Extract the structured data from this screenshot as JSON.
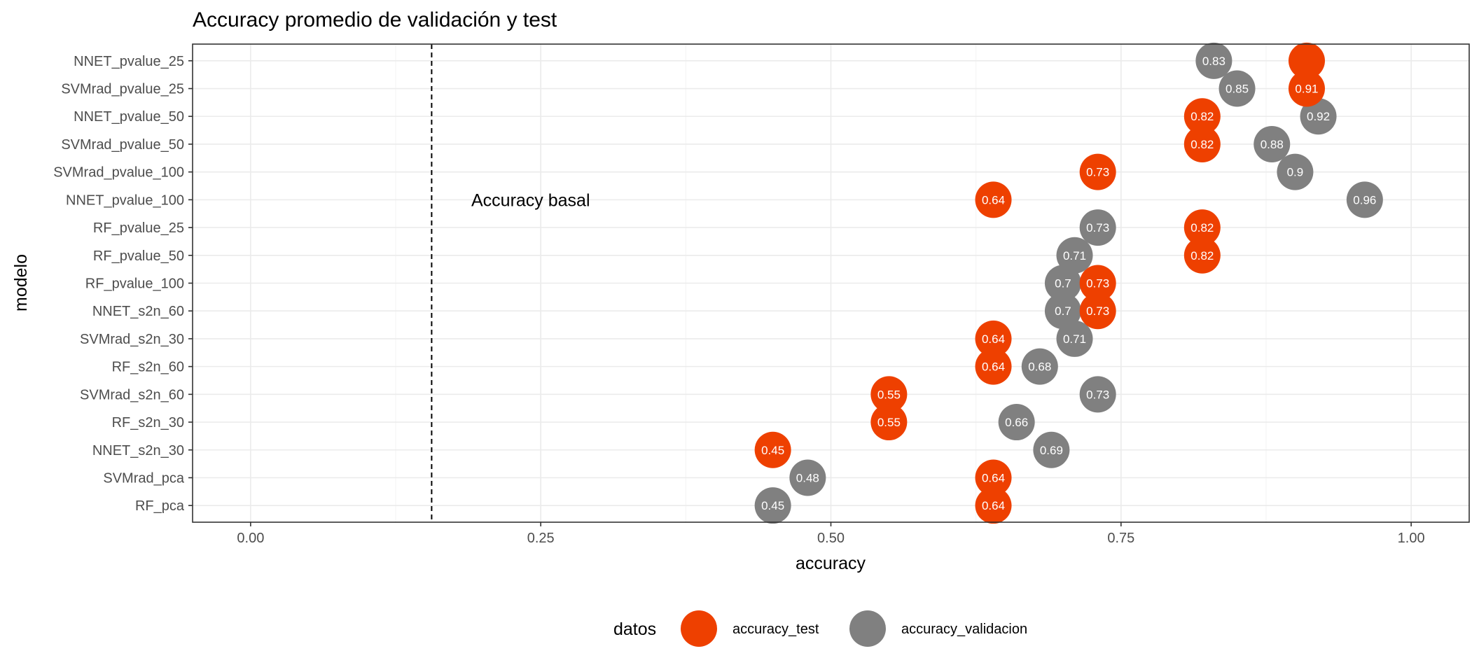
{
  "chart_data": {
    "type": "scatter",
    "title": "Accuracy promedio de validación y test",
    "xlabel": "accuracy",
    "ylabel": "modelo",
    "xlim": [
      -0.05,
      1.05
    ],
    "x_ticks": [
      0,
      0.25,
      0.5,
      0.75,
      1
    ],
    "x_tick_labels": [
      "0.00",
      "0.25",
      "0.50",
      "0.75",
      "1.00"
    ],
    "grid": true,
    "legend": {
      "title": "datos",
      "position": "bottom"
    },
    "categories": [
      "NNET_pvalue_25",
      "SVMrad_pvalue_25",
      "NNET_pvalue_50",
      "SVMrad_pvalue_50",
      "SVMrad_pvalue_100",
      "NNET_pvalue_100",
      "RF_pvalue_25",
      "RF_pvalue_50",
      "RF_pvalue_100",
      "NNET_s2n_60",
      "SVMrad_s2n_30",
      "RF_s2n_60",
      "SVMrad_s2n_60",
      "RF_s2n_30",
      "NNET_s2n_30",
      "SVMrad_pca",
      "RF_pca"
    ],
    "series": [
      {
        "name": "accuracy_test",
        "color": "#EE4000",
        "values": [
          0.91,
          0.91,
          0.82,
          0.82,
          0.73,
          0.64,
          0.82,
          0.82,
          0.73,
          0.73,
          0.64,
          0.64,
          0.55,
          0.55,
          0.45,
          0.64,
          0.64
        ],
        "labels": [
          "",
          "0.91",
          "0.82",
          "0.82",
          "0.73",
          "0.64",
          "0.82",
          "0.82",
          "0.73",
          "0.73",
          "0.64",
          "0.64",
          "0.55",
          "0.55",
          "0.45",
          "0.64",
          "0.64"
        ]
      },
      {
        "name": "accuracy_validacion",
        "color": "#808080",
        "values": [
          0.83,
          0.85,
          0.92,
          0.88,
          0.9,
          0.96,
          0.73,
          0.71,
          0.7,
          0.7,
          0.71,
          0.68,
          0.73,
          0.66,
          0.69,
          0.48,
          0.45
        ],
        "labels": [
          "0.83",
          "0.85",
          "0.92",
          "0.88",
          "0.9",
          "0.96",
          "0.73",
          "0.71",
          "0.7",
          "0.7",
          "0.71",
          "0.68",
          "0.73",
          "0.66",
          "0.69",
          "0.48",
          "0.45"
        ]
      }
    ],
    "reference_line": {
      "x": 0.156,
      "style": "dashed",
      "label": "Accuracy basal"
    }
  }
}
